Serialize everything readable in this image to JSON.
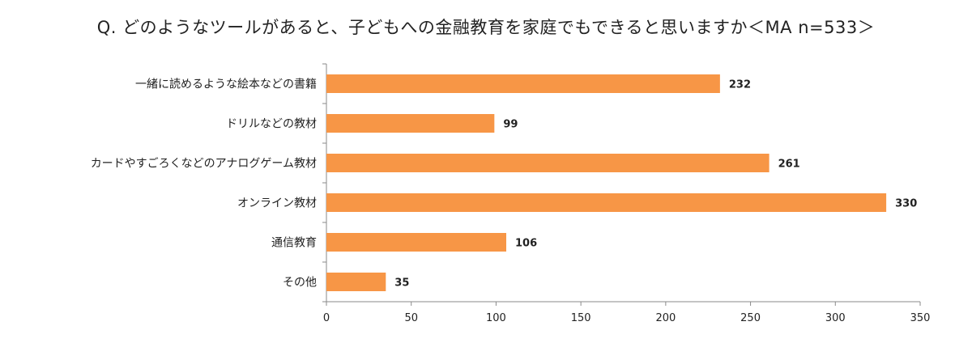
{
  "chart_data": {
    "type": "bar",
    "orientation": "horizontal",
    "title": "Q. どのようなツールがあると、子どもへの金融教育を家庭でもできると思いますか＜MA n=533＞",
    "categories": [
      "一緒に読めるような絵本などの書籍",
      "ドリルなどの教材",
      "カードやすごろくなどのアナログゲーム教材",
      "オンライン教材",
      "通信教育",
      "その他"
    ],
    "values": [
      232,
      99,
      261,
      330,
      106,
      35
    ],
    "value_labels": [
      "232",
      "99",
      "261",
      "330",
      "106",
      "35"
    ],
    "xlim": [
      0,
      350
    ],
    "xticks": [
      "0",
      "50",
      "100",
      "150",
      "200",
      "250",
      "300",
      "350"
    ],
    "grid": false,
    "bar_color": "#F79646"
  }
}
